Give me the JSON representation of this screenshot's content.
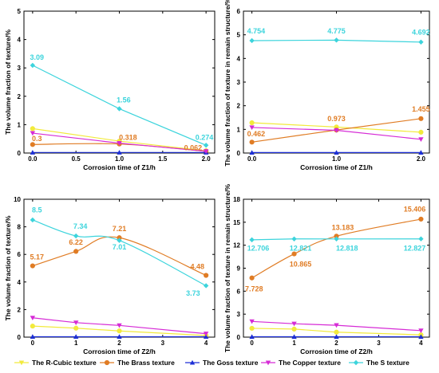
{
  "colors": {
    "r_cubic": "#f2ea3c",
    "brass": "#e07c24",
    "goss": "#1d2fd6",
    "copper": "#d62bd6",
    "s": "#3cd4dc"
  },
  "legend": [
    {
      "label": "The R-Cubic texture",
      "color_key": "r_cubic",
      "marker": "triangle-down-yellow"
    },
    {
      "label": "The Brass texture",
      "color_key": "brass",
      "marker": "circle"
    },
    {
      "label": "The Goss texture",
      "color_key": "goss",
      "marker": "triangle-up"
    },
    {
      "label": "The Copper texture",
      "color_key": "copper",
      "marker": "triangle-down"
    },
    {
      "label": "The S texture",
      "color_key": "s",
      "marker": "diamond"
    }
  ],
  "chart_data": [
    {
      "type": "line",
      "xlabel": "Corrosion time of Z1/h",
      "ylabel": "The volume fraction of texture/%",
      "xlim": [
        -0.1,
        2.1
      ],
      "ylim": [
        0,
        5
      ],
      "xticks": [
        "0.0",
        "0.5",
        "1.0",
        "1.5",
        "2.0"
      ],
      "yticks": [
        "0",
        "1",
        "2",
        "3",
        "4",
        "5"
      ],
      "series": [
        {
          "name": "The R-Cubic texture",
          "color_key": "r_cubic",
          "marker": "circle",
          "smooth": false,
          "x": [
            0,
            1,
            2
          ],
          "y": [
            0.86,
            0.42,
            0.08
          ]
        },
        {
          "name": "The Brass texture",
          "color_key": "brass",
          "marker": "circle",
          "smooth": true,
          "x": [
            0,
            1,
            2
          ],
          "y": [
            0.3,
            0.318,
            0.062
          ]
        },
        {
          "name": "The Goss texture",
          "color_key": "goss",
          "marker": "triangle-up",
          "smooth": false,
          "x": [
            0,
            1,
            2
          ],
          "y": [
            0.02,
            0.02,
            0.02
          ]
        },
        {
          "name": "The Copper texture",
          "color_key": "copper",
          "marker": "triangle-down",
          "smooth": false,
          "x": [
            0,
            1,
            2
          ],
          "y": [
            0.7,
            0.35,
            0.06
          ]
        },
        {
          "name": "The S texture",
          "color_key": "s",
          "marker": "diamond",
          "smooth": false,
          "x": [
            0,
            1,
            2
          ],
          "y": [
            3.09,
            1.56,
            0.274
          ]
        }
      ],
      "data_labels": [
        {
          "text": "3.09",
          "color_key": "s",
          "x": 0.05,
          "y": 3.28
        },
        {
          "text": "1.56",
          "color_key": "s",
          "x": 1.05,
          "y": 1.78
        },
        {
          "text": "0.274",
          "color_key": "s",
          "x": 1.98,
          "y": 0.46
        },
        {
          "text": "0.3",
          "color_key": "brass",
          "x": 0.05,
          "y": 0.42
        },
        {
          "text": "0.318",
          "color_key": "brass",
          "x": 1.1,
          "y": 0.47
        },
        {
          "text": "0.062",
          "color_key": "brass",
          "x": 1.85,
          "y": 0.1
        }
      ]
    },
    {
      "type": "line",
      "xlabel": "Corrosion time of Z1/h",
      "ylabel": "The volume fraction of texture in remain structure/%",
      "xlim": [
        -0.1,
        2.1
      ],
      "ylim": [
        0,
        6
      ],
      "xticks": [
        "0.0",
        "1.0",
        "2.0"
      ],
      "yticks": [
        "0",
        "1",
        "2",
        "3",
        "4",
        "5",
        "6"
      ],
      "series": [
        {
          "name": "The R-Cubic texture",
          "color_key": "r_cubic",
          "marker": "circle",
          "smooth": false,
          "x": [
            0,
            1,
            2
          ],
          "y": [
            1.28,
            1.1,
            0.88
          ]
        },
        {
          "name": "The Brass texture",
          "color_key": "brass",
          "marker": "circle",
          "smooth": false,
          "x": [
            0,
            1,
            2
          ],
          "y": [
            0.462,
            0.973,
            1.455
          ]
        },
        {
          "name": "The Goss texture",
          "color_key": "goss",
          "marker": "triangle-up",
          "smooth": false,
          "x": [
            0,
            1,
            2
          ],
          "y": [
            0.02,
            0.02,
            0.02
          ]
        },
        {
          "name": "The Copper texture",
          "color_key": "copper",
          "marker": "triangle-down",
          "smooth": false,
          "x": [
            0,
            1,
            2
          ],
          "y": [
            1.08,
            0.96,
            0.58
          ]
        },
        {
          "name": "The S texture",
          "color_key": "s",
          "marker": "diamond",
          "smooth": false,
          "x": [
            0,
            1,
            2
          ],
          "y": [
            4.754,
            4.775,
            4.692
          ]
        }
      ],
      "data_labels": [
        {
          "text": "4.754",
          "color_key": "s",
          "x": 0.05,
          "y": 5.05
        },
        {
          "text": "4.775",
          "color_key": "s",
          "x": 1.0,
          "y": 5.05
        },
        {
          "text": "4.692",
          "color_key": "s",
          "x": 2.0,
          "y": 5.0
        },
        {
          "text": "0.462",
          "color_key": "brass",
          "x": 0.05,
          "y": 0.7
        },
        {
          "text": "0.973",
          "color_key": "brass",
          "x": 1.0,
          "y": 1.35
        },
        {
          "text": "1.455",
          "color_key": "brass",
          "x": 2.0,
          "y": 1.75
        }
      ]
    },
    {
      "type": "line",
      "xlabel": "Corrosion time of Z2/h",
      "ylabel": "The volume fraction of texture/%",
      "xlim": [
        -0.2,
        4.2
      ],
      "ylim": [
        0,
        10
      ],
      "xticks": [
        "0",
        "1",
        "2",
        "3",
        "4"
      ],
      "yticks": [
        "0",
        "2",
        "4",
        "6",
        "8",
        "10"
      ],
      "series": [
        {
          "name": "The R-Cubic texture",
          "color_key": "r_cubic",
          "marker": "circle",
          "smooth": false,
          "x": [
            0,
            1,
            2,
            4
          ],
          "y": [
            0.8,
            0.65,
            0.45,
            0.12
          ]
        },
        {
          "name": "The Brass texture",
          "color_key": "brass",
          "marker": "circle",
          "smooth": true,
          "x": [
            0,
            1,
            2,
            4
          ],
          "y": [
            5.17,
            6.22,
            7.21,
            4.48
          ]
        },
        {
          "name": "The Goss texture",
          "color_key": "goss",
          "marker": "triangle-up",
          "smooth": false,
          "x": [
            0,
            1,
            2,
            4
          ],
          "y": [
            0.03,
            0.03,
            0.03,
            0.03
          ]
        },
        {
          "name": "The Copper texture",
          "color_key": "copper",
          "marker": "triangle-down",
          "smooth": false,
          "x": [
            0,
            1,
            2,
            4
          ],
          "y": [
            1.4,
            1.05,
            0.85,
            0.25
          ]
        },
        {
          "name": "The S texture",
          "color_key": "s",
          "marker": "diamond",
          "smooth": true,
          "x": [
            0,
            1,
            2,
            4
          ],
          "y": [
            8.5,
            7.34,
            7.01,
            3.73
          ]
        }
      ],
      "data_labels": [
        {
          "text": "8.5",
          "color_key": "s",
          "x": 0.1,
          "y": 9.05
        },
        {
          "text": "7.34",
          "color_key": "s",
          "x": 1.1,
          "y": 7.85
        },
        {
          "text": "7.01",
          "color_key": "s",
          "x": 2.0,
          "y": 6.35
        },
        {
          "text": "3.73",
          "color_key": "s",
          "x": 3.7,
          "y": 3.0
        },
        {
          "text": "5.17",
          "color_key": "brass",
          "x": 0.1,
          "y": 5.65
        },
        {
          "text": "6.22",
          "color_key": "brass",
          "x": 1.0,
          "y": 6.7
        },
        {
          "text": "7.21",
          "color_key": "brass",
          "x": 2.0,
          "y": 7.7
        },
        {
          "text": "4.48",
          "color_key": "brass",
          "x": 3.8,
          "y": 4.95
        }
      ]
    },
    {
      "type": "line",
      "xlabel": "Corrosion time of Z2/h",
      "ylabel": "The volume fraction of texture in remain structure/%",
      "xlim": [
        -0.2,
        4.2
      ],
      "ylim": [
        0,
        18
      ],
      "xticks": [
        "0",
        "1",
        "2",
        "3",
        "4"
      ],
      "yticks": [
        "0",
        "3",
        "6",
        "9",
        "12",
        "15",
        "18"
      ],
      "series": [
        {
          "name": "The R-Cubic texture",
          "color_key": "r_cubic",
          "marker": "circle",
          "smooth": false,
          "x": [
            0,
            1,
            2,
            4
          ],
          "y": [
            1.15,
            1.05,
            0.65,
            0.3
          ]
        },
        {
          "name": "The Brass texture",
          "color_key": "brass",
          "marker": "circle",
          "smooth": true,
          "x": [
            0,
            1,
            2,
            4
          ],
          "y": [
            7.728,
            10.865,
            13.183,
            15.406
          ]
        },
        {
          "name": "The Goss texture",
          "color_key": "goss",
          "marker": "triangle-up",
          "smooth": false,
          "x": [
            0,
            1,
            2,
            4
          ],
          "y": [
            0.05,
            0.05,
            0.05,
            0.05
          ]
        },
        {
          "name": "The Copper texture",
          "color_key": "copper",
          "marker": "triangle-down",
          "smooth": false,
          "x": [
            0,
            1,
            2,
            4
          ],
          "y": [
            2.05,
            1.75,
            1.55,
            0.85
          ]
        },
        {
          "name": "The S texture",
          "color_key": "s",
          "marker": "diamond",
          "smooth": false,
          "x": [
            0,
            1,
            2,
            4
          ],
          "y": [
            12.706,
            12.821,
            12.818,
            12.827
          ]
        }
      ],
      "data_labels": [
        {
          "text": "12.706",
          "color_key": "s",
          "x": 0.15,
          "y": 11.3
        },
        {
          "text": "12.821",
          "color_key": "s",
          "x": 1.15,
          "y": 11.3
        },
        {
          "text": "12.818",
          "color_key": "s",
          "x": 2.25,
          "y": 11.3
        },
        {
          "text": "12.827",
          "color_key": "s",
          "x": 3.85,
          "y": 11.3
        },
        {
          "text": "7.728",
          "color_key": "brass",
          "x": 0.05,
          "y": 6.0
        },
        {
          "text": "10.865",
          "color_key": "brass",
          "x": 1.15,
          "y": 9.2
        },
        {
          "text": "13.183",
          "color_key": "brass",
          "x": 2.15,
          "y": 14.0
        },
        {
          "text": "15.406",
          "color_key": "brass",
          "x": 3.85,
          "y": 16.4
        }
      ]
    }
  ]
}
